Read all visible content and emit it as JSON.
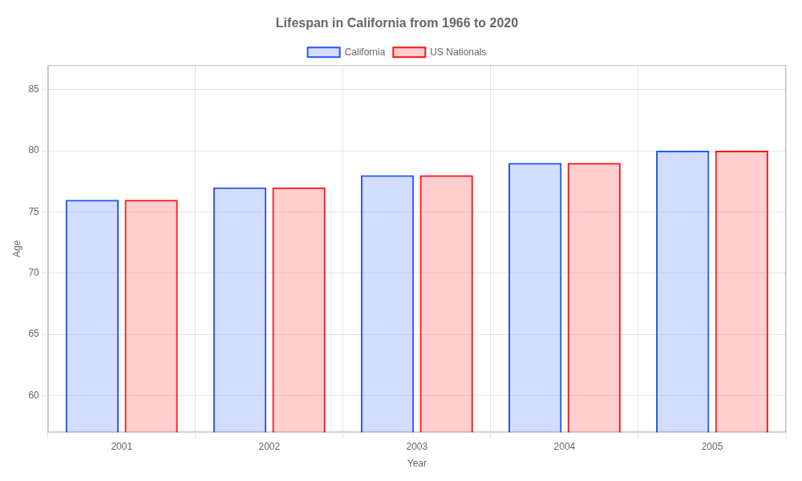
{
  "chart_data": {
    "type": "bar",
    "title": "Lifespan in California from 1966 to 2020",
    "x_label": "Year",
    "y_label": "Age",
    "categories": [
      "2001",
      "2002",
      "2003",
      "2004",
      "2005"
    ],
    "series": [
      {
        "name": "California",
        "color": "#2255ff",
        "values": [
          76,
          77,
          78,
          79,
          80
        ]
      },
      {
        "name": "US Nationals",
        "color": "#ff1111",
        "values": [
          76,
          77,
          78,
          79,
          80
        ]
      }
    ],
    "ylim": [
      57,
      87
    ],
    "yticks": [
      60,
      65,
      70,
      75,
      80,
      85
    ],
    "grid": true,
    "legend": "top"
  }
}
